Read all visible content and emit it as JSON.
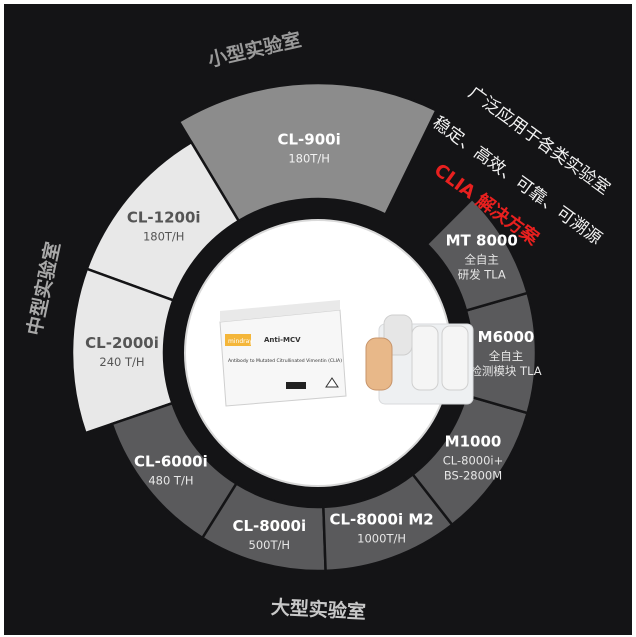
{
  "slogan": {
    "line1": "广泛应用于各类实验室",
    "line2": "稳定、高效、可靠、可溯源",
    "line3": "CLIA 解决方案"
  },
  "categories": {
    "small": "小型实验室",
    "medium": "中型实验室",
    "large": "大型实验室"
  },
  "segments": [
    {
      "name": "CL-900i",
      "sub": [
        "180T/H"
      ]
    },
    {
      "name": "CL-1200i",
      "sub": [
        "180T/H"
      ]
    },
    {
      "name": "CL-2000i",
      "sub": [
        "240 T/H"
      ]
    },
    {
      "name": "CL-6000i",
      "sub": [
        "480 T/H"
      ]
    },
    {
      "name": "CL-8000i",
      "sub": [
        "500T/H"
      ]
    },
    {
      "name": "CL-8000i M2",
      "sub": [
        "1000T/H"
      ]
    },
    {
      "name": "M1000",
      "sub": [
        "CL-8000i+",
        "BS-2800M"
      ]
    },
    {
      "name": "M6000",
      "sub": [
        "全自主",
        "检测模块 TLA"
      ]
    },
    {
      "name": "MT 8000",
      "sub": [
        "全自主",
        "研发 TLA"
      ]
    }
  ],
  "product": {
    "box_brand": "mindray",
    "box_label": "Anti-MCV",
    "box_text": "Antibody to Mutated Citrullinated Vimentin (CLIA)"
  },
  "colors": {
    "background": "#141416",
    "small_lab": "#8c8c8c",
    "medium_lab": "#e8e8e8",
    "large_lab": "#5a5a5c",
    "clia_red": "#e8201f"
  }
}
